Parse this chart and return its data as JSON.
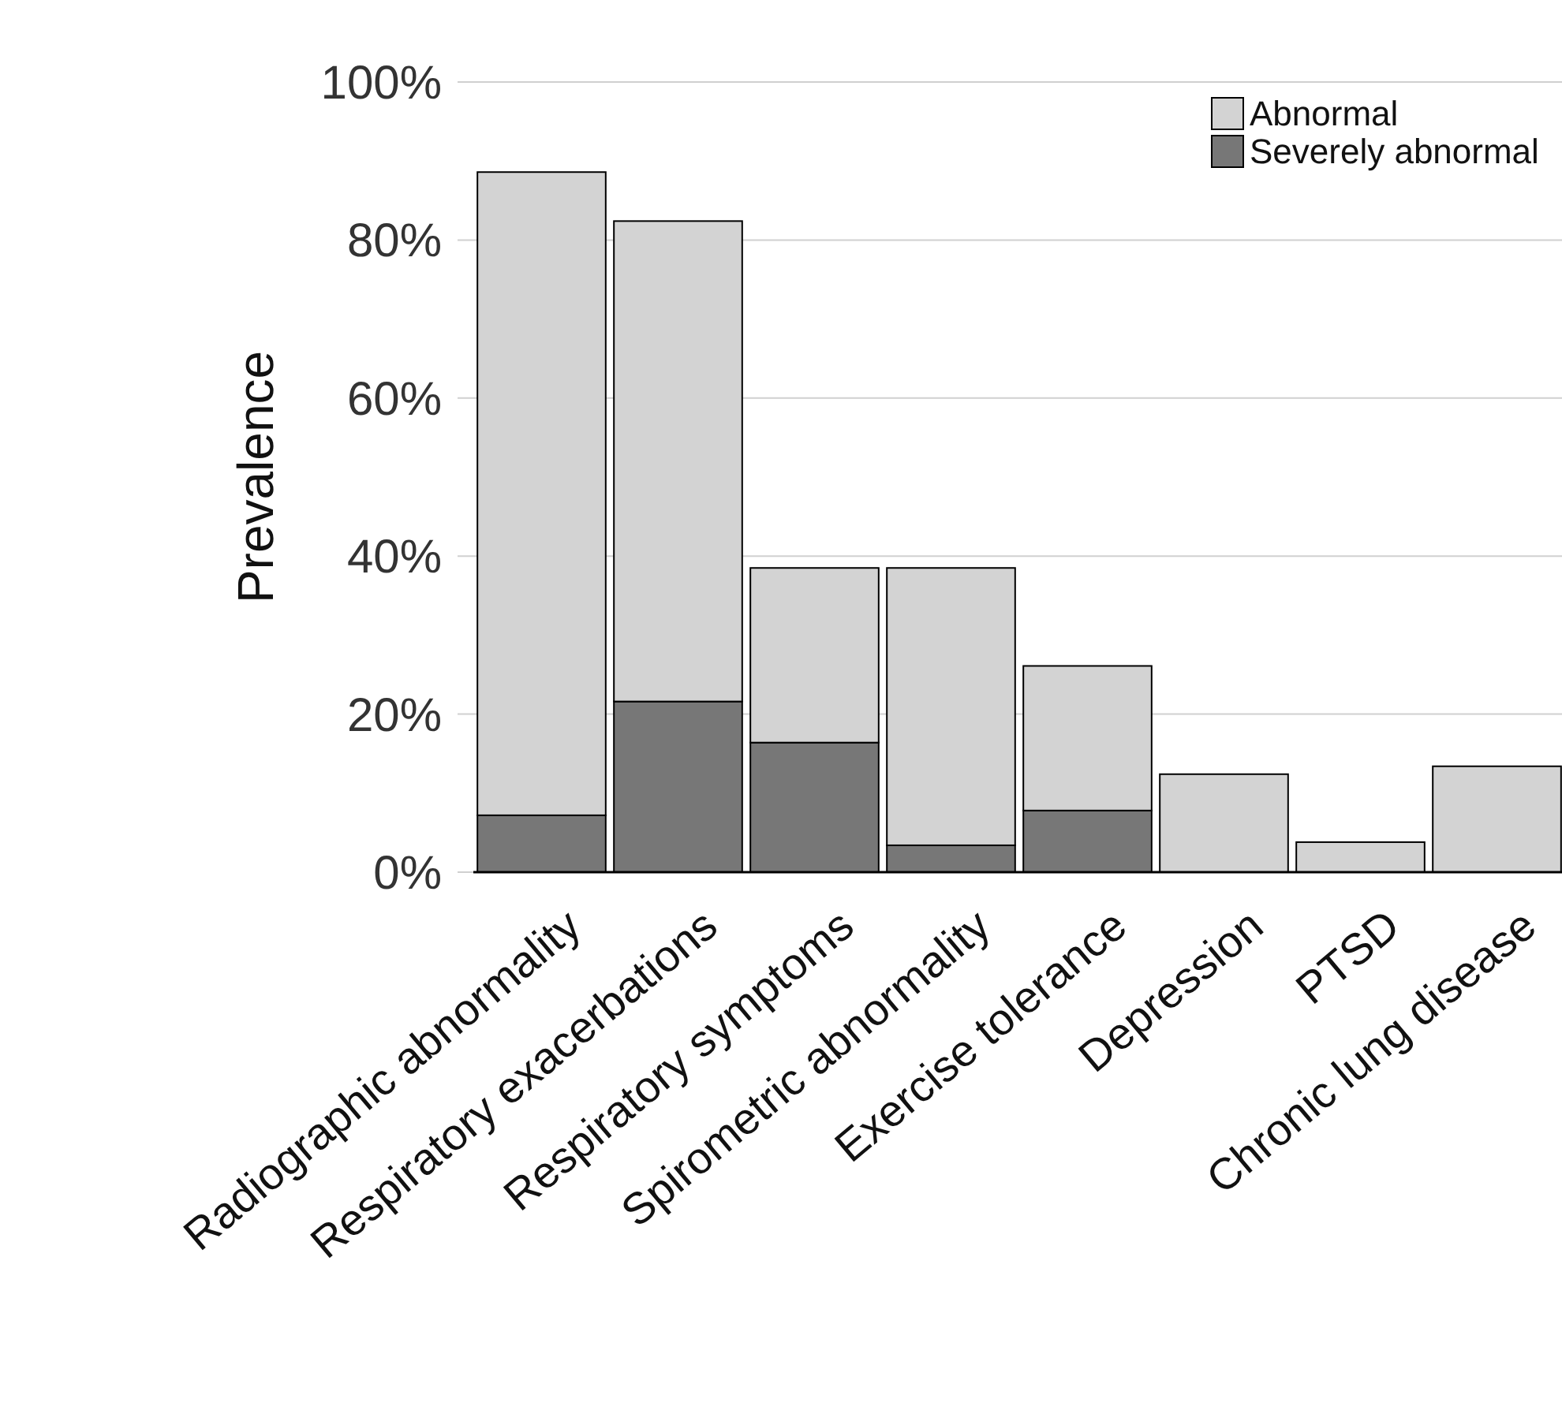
{
  "chart_data": {
    "type": "bar",
    "stacked": true,
    "ylabel": "Prevalence",
    "categories": [
      "Radiographic abnormality",
      "Respiratory exacerbations",
      "Respiratory symptoms",
      "Spirometric abnormality",
      "Exercise tolerance",
      "Depression",
      "PTSD",
      "Chronic lung disease"
    ],
    "series": [
      {
        "name": "Severely abnormal",
        "color": "#777777",
        "values": [
          7.2,
          21.6,
          16.4,
          3.4,
          7.8,
          null,
          null,
          null
        ]
      },
      {
        "name": "Abnormal",
        "color": "#d3d3d3",
        "values": [
          81.4,
          60.8,
          22.1,
          35.1,
          18.3,
          12.4,
          3.8,
          13.4
        ]
      }
    ],
    "ylim": [
      0,
      100
    ],
    "yticks": [
      {
        "value": 0,
        "label": "0%"
      },
      {
        "value": 20,
        "label": "20%"
      },
      {
        "value": 40,
        "label": "40%"
      },
      {
        "value": 60,
        "label": "60%"
      },
      {
        "value": 80,
        "label": "80%"
      },
      {
        "value": 100,
        "label": "100%"
      }
    ],
    "grid": "y",
    "legend": "top right"
  }
}
